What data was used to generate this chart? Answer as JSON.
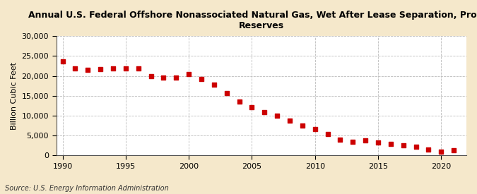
{
  "title": "Annual U.S. Federal Offshore Nonassociated Natural Gas, Wet After Lease Separation, Proved\nReserves",
  "ylabel": "Billion Cubic Feet",
  "source": "Source: U.S. Energy Information Administration",
  "background_color": "#f5e8cb",
  "plot_background_color": "#ffffff",
  "marker_color": "#cc0000",
  "years": [
    1990,
    1991,
    1992,
    1993,
    1994,
    1995,
    1996,
    1997,
    1998,
    1999,
    2000,
    2001,
    2002,
    2003,
    2004,
    2005,
    2006,
    2007,
    2008,
    2009,
    2010,
    2011,
    2012,
    2013,
    2014,
    2015,
    2016,
    2017,
    2018,
    2019,
    2020,
    2021
  ],
  "values": [
    23700,
    21800,
    21500,
    21700,
    21800,
    21800,
    21800,
    19900,
    19500,
    19600,
    20500,
    19200,
    17800,
    15600,
    13500,
    12200,
    10900,
    10000,
    8700,
    7500,
    6700,
    5400,
    3900,
    3500,
    3700,
    3200,
    2900,
    2500,
    2100,
    1500,
    900,
    1300
  ],
  "ylim": [
    0,
    30000
  ],
  "yticks": [
    0,
    5000,
    10000,
    15000,
    20000,
    25000,
    30000
  ],
  "xlim": [
    1989.5,
    2022.0
  ],
  "xticks": [
    1990,
    1995,
    2000,
    2005,
    2010,
    2015,
    2020
  ],
  "grid_color": "#bbbbbb",
  "grid_linestyle": "--",
  "grid_linewidth": 0.6,
  "tick_fontsize": 8,
  "ylabel_fontsize": 8,
  "title_fontsize": 9,
  "source_fontsize": 7,
  "marker_size": 16
}
